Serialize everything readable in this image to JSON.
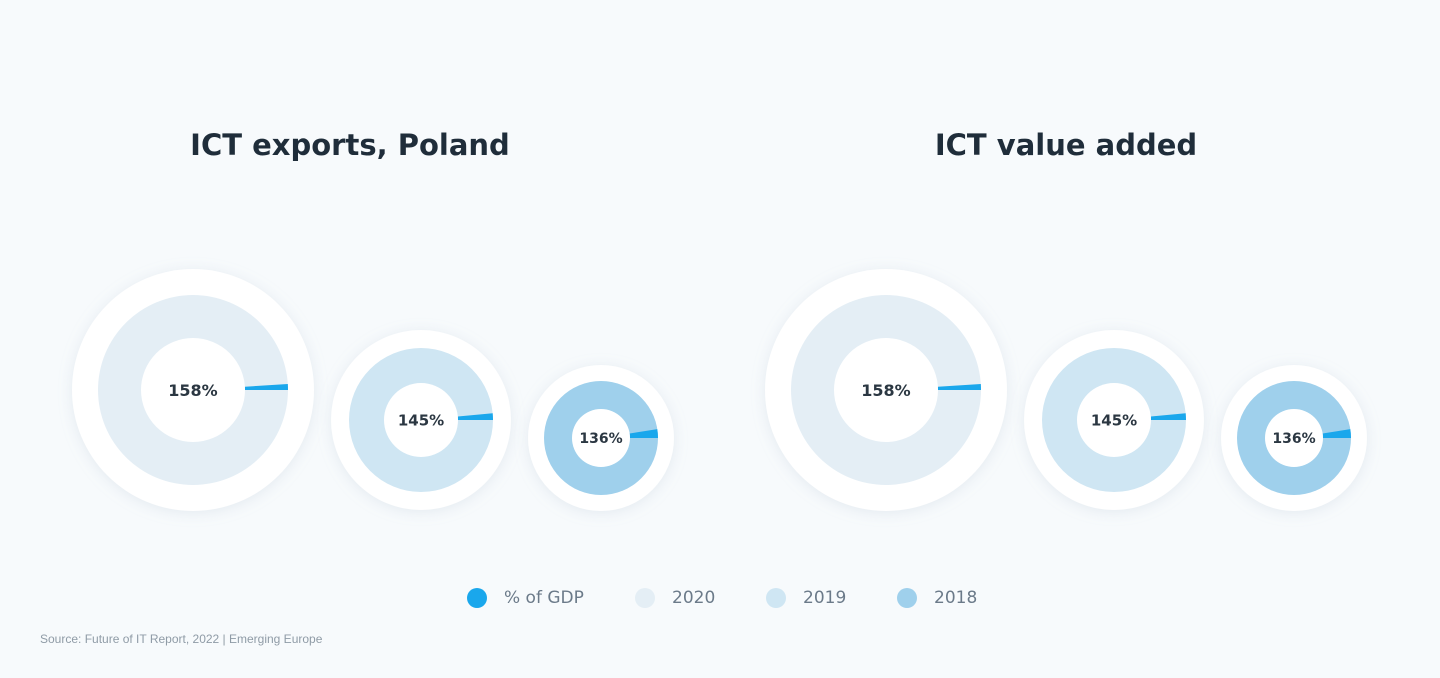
{
  "chart_data": [
    {
      "type": "pie",
      "title": "ICT exports, Poland",
      "donuts": [
        {
          "year": "2020",
          "label": "158%",
          "slice_pct": 1.0,
          "color": "#e4eef5"
        },
        {
          "year": "2019",
          "label": "145%",
          "slice_pct": 1.5,
          "color": "#cfe6f3"
        },
        {
          "year": "2018",
          "label": "136%",
          "slice_pct": 2.5,
          "color": "#9fd0ec"
        }
      ]
    },
    {
      "type": "pie",
      "title": "ICT value added",
      "donuts": [
        {
          "year": "2020",
          "label": "158%",
          "slice_pct": 1.0,
          "color": "#e4eef5"
        },
        {
          "year": "2019",
          "label": "145%",
          "slice_pct": 1.5,
          "color": "#cfe6f3"
        },
        {
          "year": "2018",
          "label": "136%",
          "slice_pct": 2.5,
          "color": "#9fd0ec"
        }
      ]
    }
  ],
  "slice_color": "#1aa7ec",
  "legend": [
    {
      "label": "% of GDP",
      "color": "#1aa7ec"
    },
    {
      "label": "2020",
      "color": "#e4eef5"
    },
    {
      "label": "2019",
      "color": "#cfe6f3"
    },
    {
      "label": "2018",
      "color": "#9fd0ec"
    }
  ],
  "source": "Source: Future of IT Report, 2022 | Emerging Europe"
}
